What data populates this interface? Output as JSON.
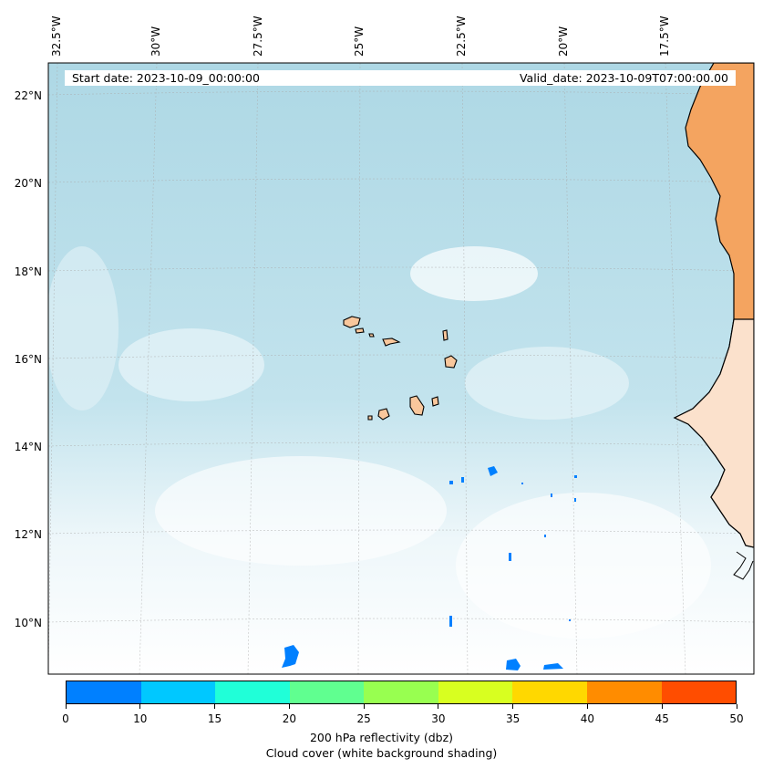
{
  "map": {
    "start_date": "Start date: 2023-10-09_00:00:00",
    "valid_date": "Valid_date: 2023-10-09T07:00:00.00",
    "lon_labels": [
      "32.5°W",
      "30°W",
      "27.5°W",
      "25°W",
      "22.5°W",
      "20°W",
      "17.5°W"
    ],
    "lat_labels": [
      "22°N",
      "20°N",
      "18°N",
      "16°N",
      "14°N",
      "12°N",
      "10°N"
    ],
    "colors": {
      "ocean_cloud": "#b9e0ea",
      "cloud_light": "#e6f4f8",
      "land": "#f4a460",
      "island": "#f9c79c"
    },
    "icons": [
      "coastline",
      "island-outlines",
      "reflectivity-cells"
    ]
  },
  "colorbar": {
    "ticks": [
      "0",
      "10",
      "15",
      "20",
      "25",
      "30",
      "35",
      "40",
      "45",
      "50"
    ],
    "colors": [
      "#0080ff",
      "#00c8ff",
      "#20ffd8",
      "#60ff90",
      "#98ff50",
      "#d8ff20",
      "#ffd800",
      "#ff8c00",
      "#ff4d00"
    ],
    "label_line1": "200 hPa reflectivity (dbz)",
    "label_line2": "Cloud cover (white background shading)"
  }
}
